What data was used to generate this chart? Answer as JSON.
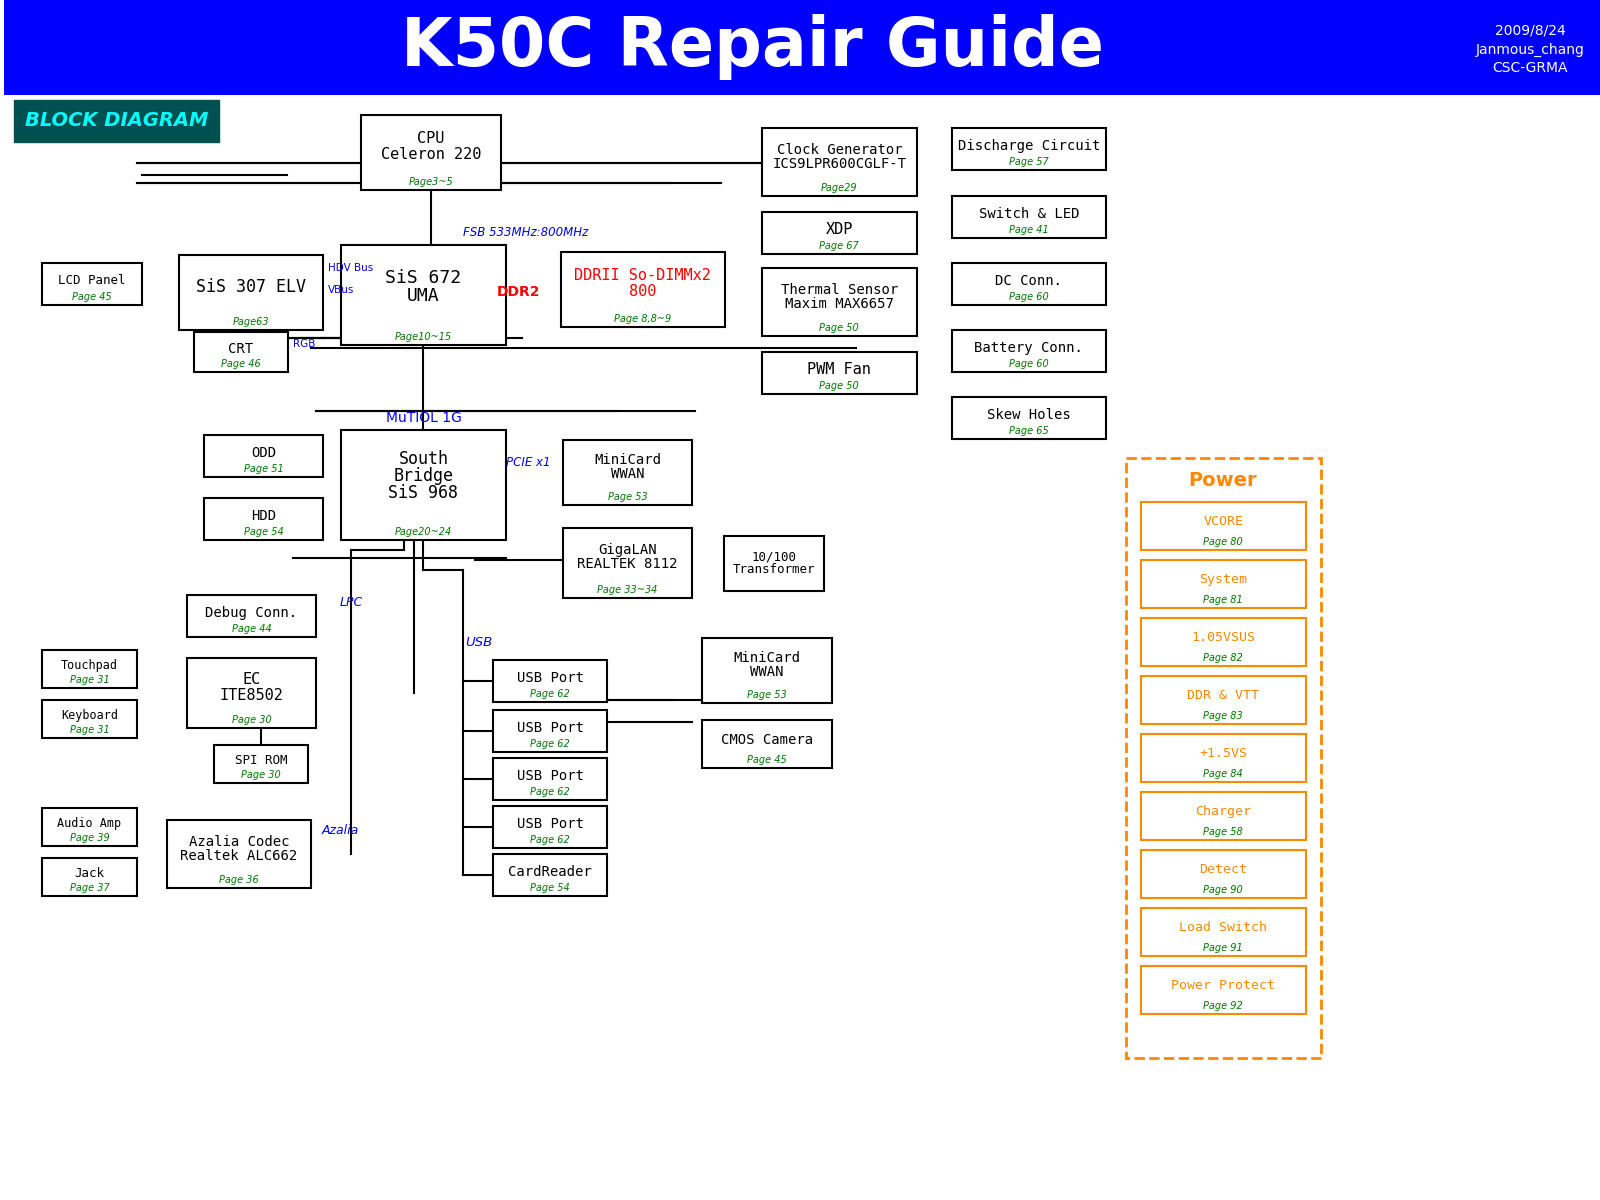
{
  "title": "K50C Repair Guide",
  "title_color": "#FFFFFF",
  "title_bg": "#0000FF",
  "header_info": "2009/8/24\nJanmous_chang\nCSC-GRMA",
  "bg_color": "#FFFFFF",
  "block_diagram_text": "BLOCK DIAGRAM"
}
